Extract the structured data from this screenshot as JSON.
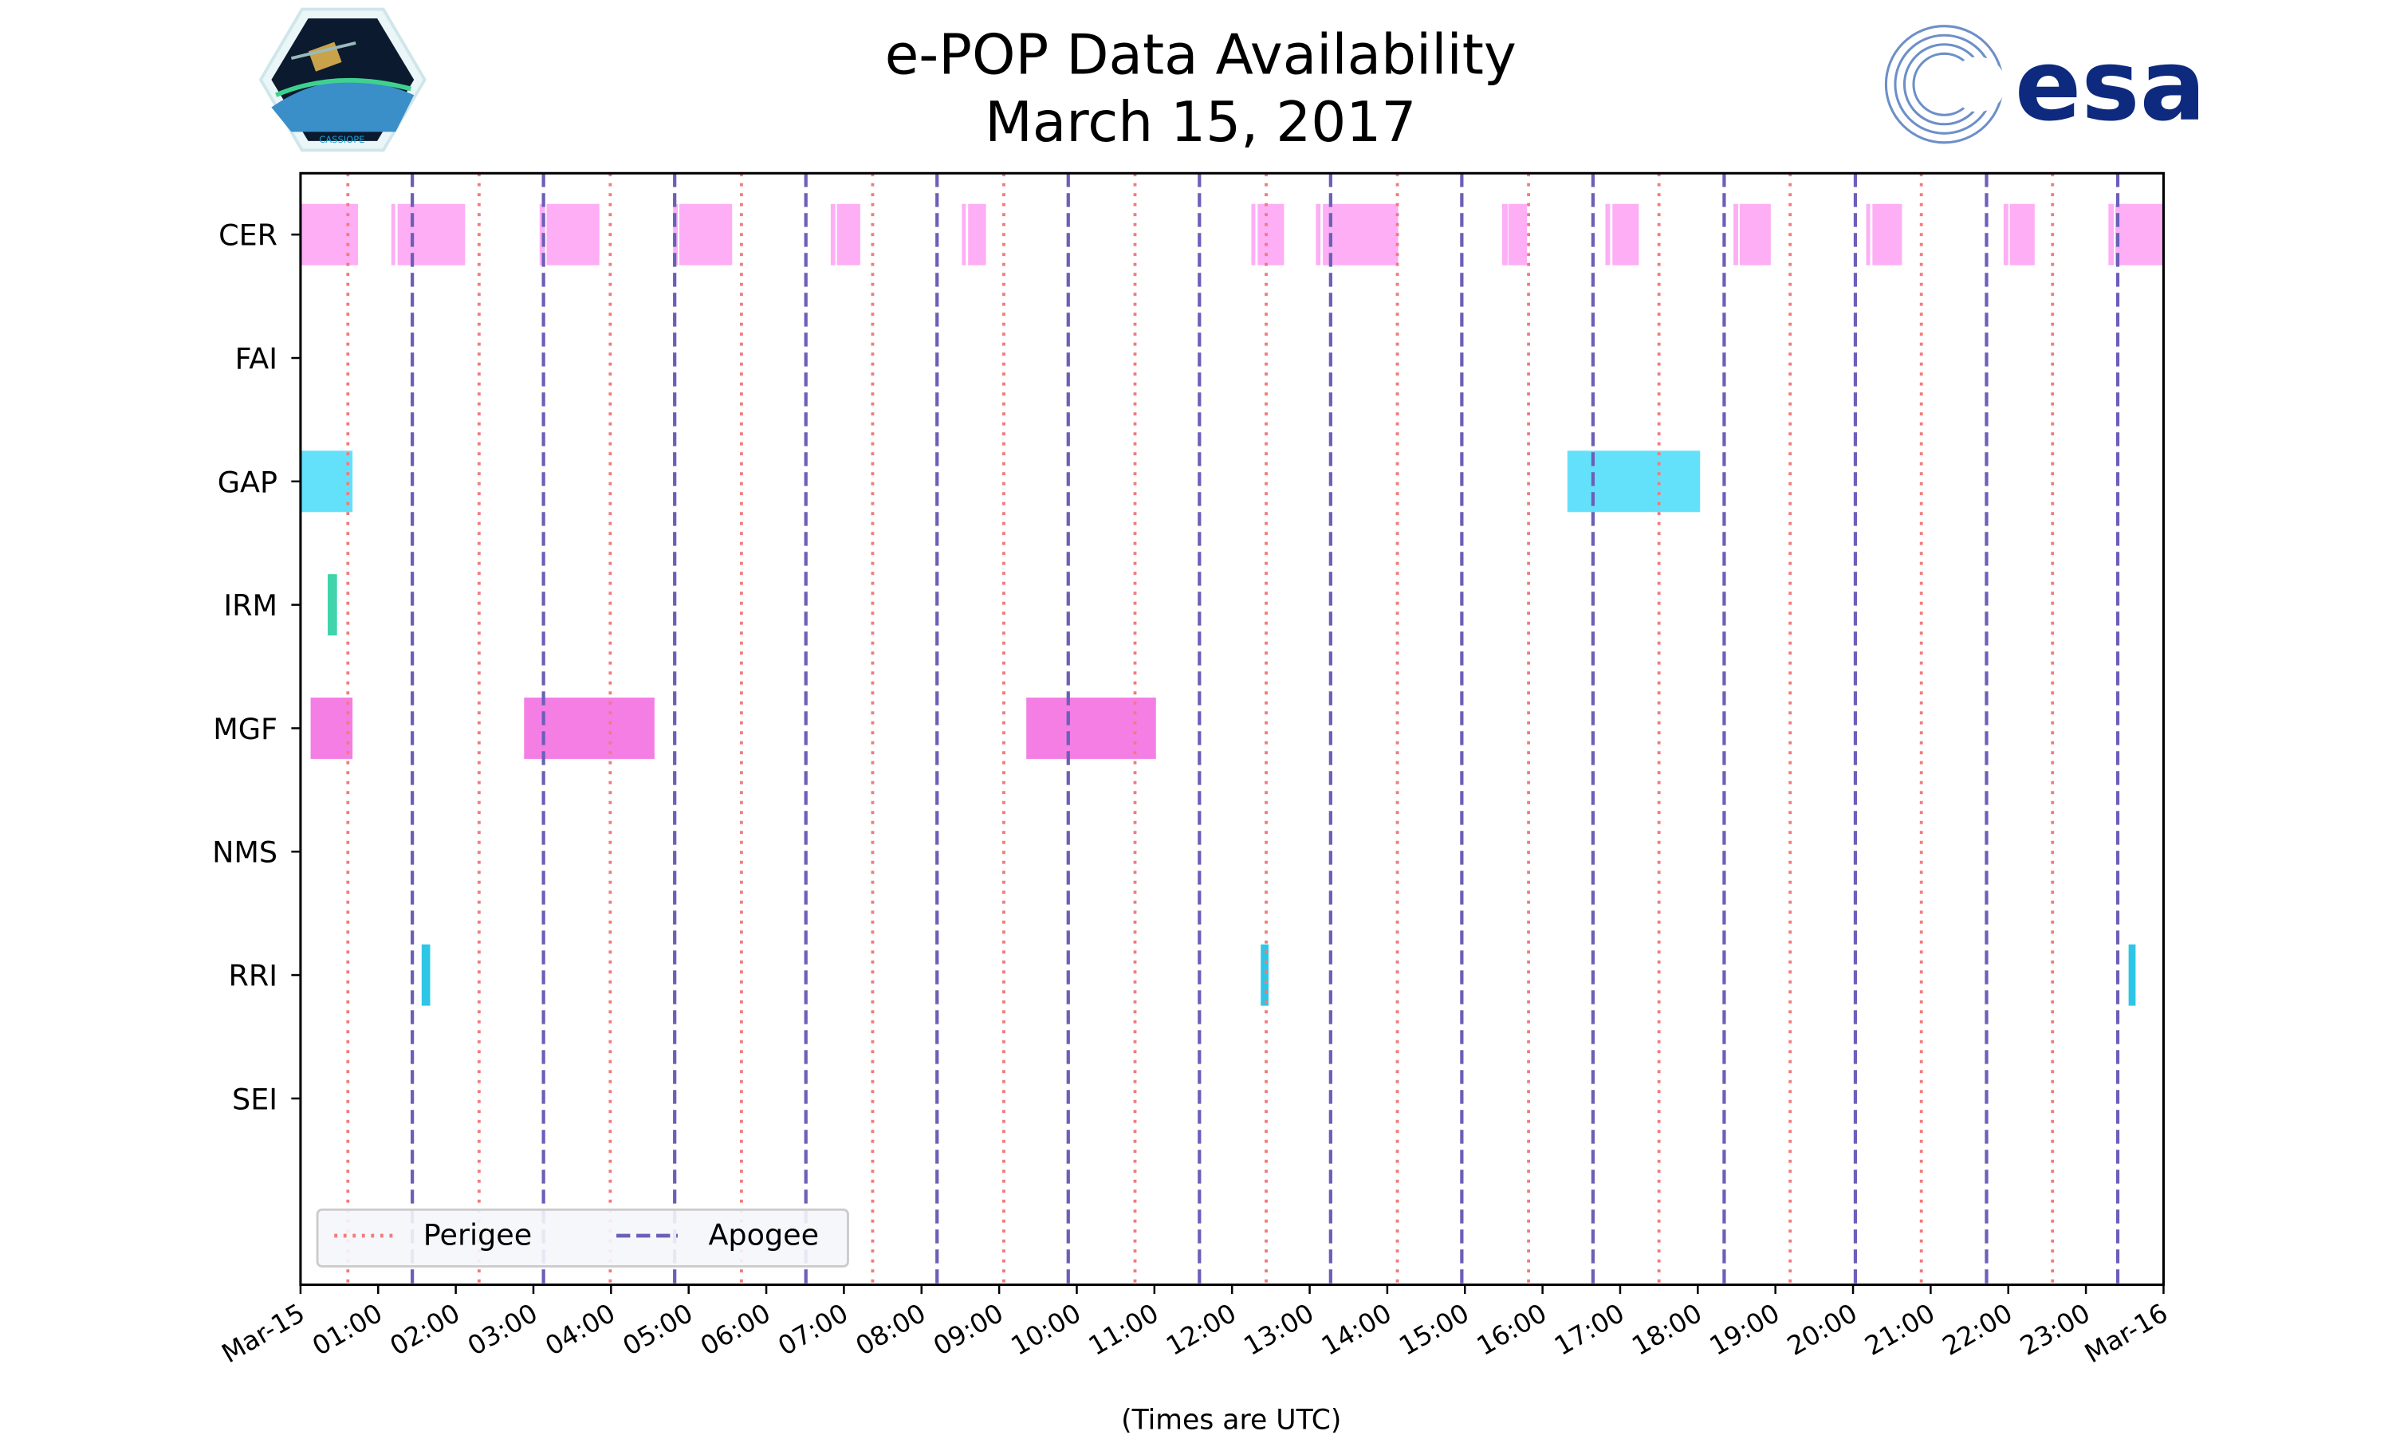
{
  "chart_data": {
    "type": "timeline",
    "title": "e-POP Data Availability",
    "subtitle": "March 15, 2017",
    "xlabel": "(Times are UTC)",
    "x_unit": "hours since 2017-03-15 00:00 UTC",
    "xlim": [
      0,
      24
    ],
    "x_tick_labels": [
      "Mar-15",
      "01:00",
      "02:00",
      "03:00",
      "04:00",
      "05:00",
      "06:00",
      "07:00",
      "08:00",
      "09:00",
      "10:00",
      "11:00",
      "12:00",
      "13:00",
      "14:00",
      "15:00",
      "16:00",
      "17:00",
      "18:00",
      "19:00",
      "20:00",
      "21:00",
      "22:00",
      "23:00",
      "Mar-16"
    ],
    "categories": [
      "CER",
      "FAI",
      "GAP",
      "IRM",
      "MGF",
      "NMS",
      "RRI",
      "SEI"
    ],
    "series": [
      {
        "name": "CER",
        "color": "#fdaef5",
        "intervals": [
          [
            0,
            0.74
          ],
          [
            1.17,
            1.22
          ],
          [
            1.25,
            2.12
          ],
          [
            3.08,
            3.15
          ],
          [
            3.17,
            3.85
          ],
          [
            4.8,
            4.86
          ],
          [
            4.88,
            5.56
          ],
          [
            6.83,
            6.89
          ],
          [
            6.91,
            7.21
          ],
          [
            8.52,
            8.57
          ],
          [
            8.6,
            8.83
          ],
          [
            12.25,
            12.3
          ],
          [
            12.33,
            12.67
          ],
          [
            13.08,
            13.14
          ],
          [
            13.17,
            14.14
          ],
          [
            15.48,
            15.55
          ],
          [
            15.56,
            15.8
          ],
          [
            16.81,
            16.87
          ],
          [
            16.9,
            17.24
          ],
          [
            18.46,
            18.52
          ],
          [
            18.54,
            18.94
          ],
          [
            20.17,
            20.22
          ],
          [
            20.25,
            20.63
          ],
          [
            21.94,
            22.0
          ],
          [
            22.02,
            22.34
          ],
          [
            23.29,
            23.36
          ],
          [
            23.38,
            24.0
          ]
        ]
      },
      {
        "name": "FAI",
        "color": "#cccccc",
        "intervals": []
      },
      {
        "name": "GAP",
        "color": "#63e1fb",
        "intervals": [
          [
            0,
            0.67
          ],
          [
            16.32,
            18.03
          ]
        ]
      },
      {
        "name": "IRM",
        "color": "#3fd4ab",
        "intervals": [
          [
            0.35,
            0.47
          ]
        ]
      },
      {
        "name": "MGF",
        "color": "#f47ee4",
        "intervals": [
          [
            0.13,
            0.67
          ],
          [
            2.88,
            4.56
          ],
          [
            9.35,
            11.02
          ]
        ]
      },
      {
        "name": "NMS",
        "color": "#cccccc",
        "intervals": []
      },
      {
        "name": "RRI",
        "color": "#2ec6e6",
        "intervals": [
          [
            1.56,
            1.67
          ],
          [
            12.37,
            12.47
          ],
          [
            23.55,
            23.64
          ]
        ]
      },
      {
        "name": "SEI",
        "color": "#cccccc",
        "intervals": []
      }
    ],
    "perigee": {
      "label": "Perigee",
      "color": "#f27b7b",
      "times": [
        0.61,
        2.3,
        3.99,
        5.68,
        7.37,
        9.06,
        10.75,
        12.44,
        14.13,
        15.82,
        17.5,
        19.19,
        20.88,
        22.57
      ]
    },
    "apogee": {
      "label": "Apogee",
      "color": "#6b5fb9",
      "times": [
        1.44,
        3.13,
        4.82,
        6.51,
        8.2,
        9.89,
        11.58,
        13.27,
        14.96,
        16.65,
        18.34,
        20.03,
        21.72,
        23.41
      ]
    },
    "legend_position": "lower-left",
    "grid": false
  },
  "logos": {
    "left_logo_text": "CASSIOPE",
    "right_logo_text": "esa"
  }
}
